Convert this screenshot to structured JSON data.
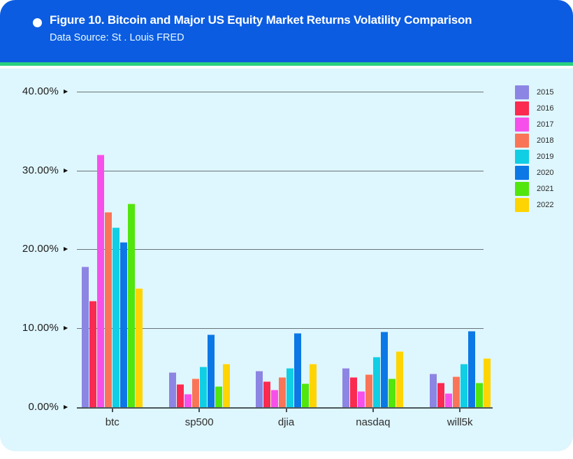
{
  "header": {
    "title": "Figure 10. Bitcoin and Major US Equity Market Returns Volatility Comparison",
    "subtitle": "Data Source: St . Louis FRED",
    "background_color": "#0b5ce1",
    "accent_bar_color": "#2bd07f"
  },
  "chart_data": {
    "type": "bar",
    "title": "Bitcoin and Major US Equity Market Returns Volatility Comparison",
    "categories": [
      "btc",
      "sp500",
      "djia",
      "nasdaq",
      "will5k"
    ],
    "series": [
      {
        "name": "2015",
        "color": "#8c85e3",
        "values": [
          17.8,
          4.4,
          4.6,
          5.0,
          4.3
        ]
      },
      {
        "name": "2016",
        "color": "#fb2a50",
        "values": [
          13.5,
          2.9,
          3.3,
          3.8,
          3.1
        ]
      },
      {
        "name": "2017",
        "color": "#f750ea",
        "values": [
          32.0,
          1.7,
          2.2,
          2.0,
          1.8
        ]
      },
      {
        "name": "2018",
        "color": "#fa7557",
        "values": [
          24.7,
          3.6,
          3.8,
          4.2,
          3.9
        ]
      },
      {
        "name": "2019",
        "color": "#10cee4",
        "values": [
          22.8,
          5.1,
          5.0,
          6.4,
          5.5
        ]
      },
      {
        "name": "2020",
        "color": "#0b78e6",
        "values": [
          20.9,
          9.2,
          9.4,
          9.6,
          9.7
        ]
      },
      {
        "name": "2021",
        "color": "#52e50e",
        "values": [
          25.8,
          2.7,
          3.0,
          3.6,
          3.1
        ]
      },
      {
        "name": "2022",
        "color": "#fed402",
        "values": [
          15.1,
          5.5,
          5.5,
          7.1,
          6.2
        ]
      }
    ],
    "y_ticks": [
      {
        "value": 40,
        "label": "40.00%"
      },
      {
        "value": 30,
        "label": "30.00%"
      },
      {
        "value": 20,
        "label": "20.00%"
      },
      {
        "value": 10,
        "label": "10.00%"
      },
      {
        "value": 0,
        "label": "0.00%"
      }
    ],
    "ylim": [
      0,
      40
    ],
    "grid": true,
    "legend_position": "right",
    "plot_background": "#def6fd"
  }
}
